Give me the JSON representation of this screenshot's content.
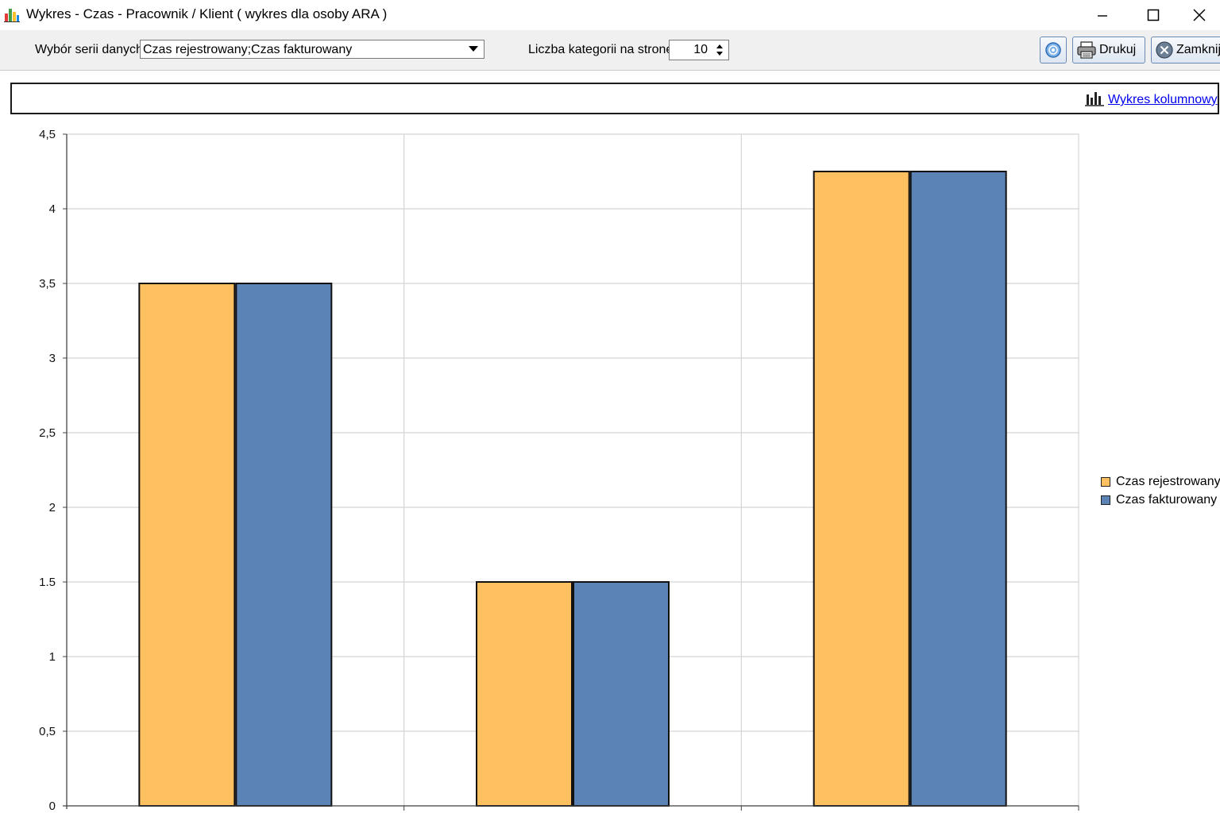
{
  "window": {
    "title": "Wykres - Czas - Pracownik / Klient  ( wykres dla osoby ARA )"
  },
  "toolbar": {
    "series_label": "Wybór serii danych",
    "series_value": "Czas rejestrowany;Czas fakturowany",
    "categories_label": "Liczba kategorii na stronę",
    "categories_value": "10",
    "print_label": "Drukuj",
    "close_label": "Zamknij"
  },
  "chart_bar": {
    "link_label": "Wykres kolumnowy"
  },
  "colors": {
    "series_1": "#FFC061",
    "series_2": "#5B83B6",
    "grid": "#d4d4d4"
  },
  "chart_data": {
    "type": "bar",
    "categories": [
      "",
      "",
      ""
    ],
    "series": [
      {
        "name": "Czas rejestrowany",
        "values": [
          3.5,
          1.5,
          4.25
        ]
      },
      {
        "name": "Czas fakturowany",
        "values": [
          3.5,
          1.5,
          4.25
        ]
      }
    ],
    "ylim": [
      0,
      4.5
    ],
    "y_ticks": [
      "0",
      "0,5",
      "1",
      "1.5",
      "2",
      "2,5",
      "3",
      "3,5",
      "4",
      "4,5"
    ],
    "grid": true,
    "legend_position": "right"
  }
}
